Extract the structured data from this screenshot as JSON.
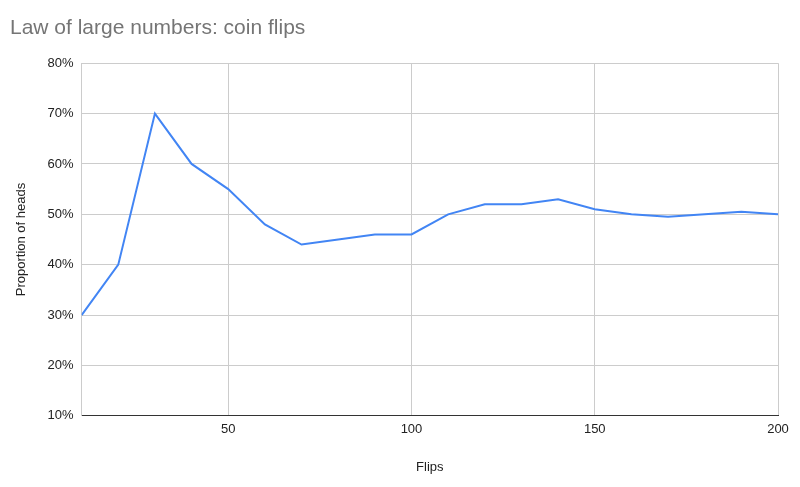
{
  "chart_data": {
    "type": "line",
    "title": "Law of large numbers: coin flips",
    "x_label": "Flips",
    "y_label": "Proportion of heads",
    "x": [
      10,
      20,
      30,
      40,
      50,
      60,
      70,
      80,
      90,
      100,
      110,
      120,
      130,
      140,
      150,
      160,
      170,
      180,
      190,
      200
    ],
    "values": [
      30,
      40,
      70,
      60,
      55,
      48,
      44,
      45,
      46,
      46,
      50,
      52,
      52,
      53,
      51,
      50,
      49.5,
      50,
      50.5,
      50
    ],
    "color": "#4285f4",
    "marker": "none",
    "grid": true,
    "xlim": [
      10,
      200
    ],
    "xticks": [
      50,
      100,
      150,
      200
    ],
    "ylim": [
      10,
      80
    ],
    "yticks": [
      {
        "value": 10,
        "label": "10%"
      },
      {
        "value": 20,
        "label": "20%"
      },
      {
        "value": 30,
        "label": "30%"
      },
      {
        "value": 40,
        "label": "40%"
      },
      {
        "value": 50,
        "label": "50%"
      },
      {
        "value": 60,
        "label": "60%"
      },
      {
        "value": 70,
        "label": "70%"
      },
      {
        "value": 80,
        "label": "80%"
      }
    ]
  }
}
